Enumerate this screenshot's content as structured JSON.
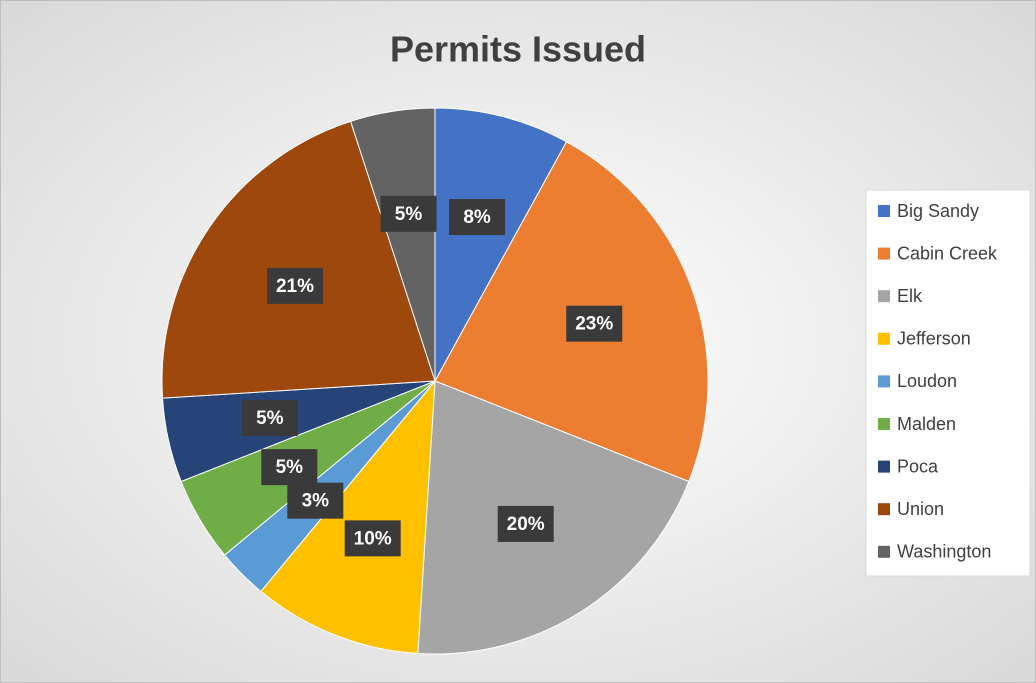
{
  "chart_data": {
    "type": "pie",
    "title": "Permits Issued",
    "categories": [
      "Big Sandy",
      "Cabin Creek",
      "Elk",
      "Jefferson",
      "Loudon",
      "Malden",
      "Poca",
      "Union",
      "Washington"
    ],
    "values": [
      8,
      23,
      20,
      10,
      3,
      5,
      5,
      21,
      5
    ],
    "value_labels": [
      "8%",
      "23%",
      "20%",
      "10%",
      "3%",
      "5%",
      "5%",
      "21%",
      "5%"
    ],
    "colors": [
      "#4472c4",
      "#ed7d31",
      "#a5a5a5",
      "#ffc000",
      "#5b9bd5",
      "#70ad47",
      "#264478",
      "#9e480e",
      "#636363"
    ],
    "legend": "right"
  }
}
